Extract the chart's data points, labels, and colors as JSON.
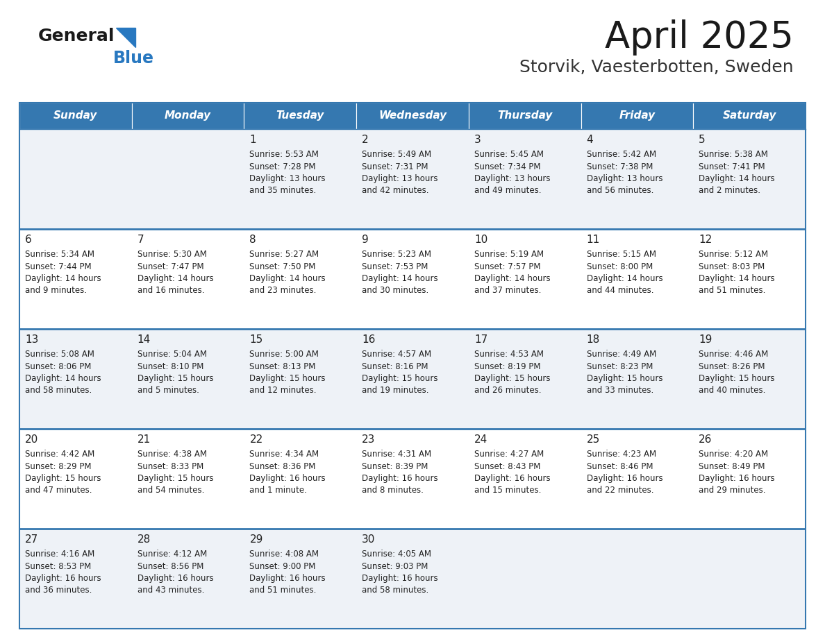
{
  "title": "April 2025",
  "subtitle": "Storvik, Vaesterbotten, Sweden",
  "days_of_week": [
    "Sunday",
    "Monday",
    "Tuesday",
    "Wednesday",
    "Thursday",
    "Friday",
    "Saturday"
  ],
  "header_bg_color": "#3578b0",
  "header_text_color": "#ffffff",
  "cell_bg_even": "#eef2f7",
  "cell_bg_odd": "#ffffff",
  "cell_border_color": "#3578b0",
  "day_number_color": "#222222",
  "text_color": "#222222",
  "title_color": "#1a1a1a",
  "subtitle_color": "#333333",
  "logo_general_color": "#1a1a1a",
  "logo_blue_color": "#2878c0",
  "weeks": [
    [
      {
        "day": "",
        "sunrise": "",
        "sunset": "",
        "daylight": ""
      },
      {
        "day": "",
        "sunrise": "",
        "sunset": "",
        "daylight": ""
      },
      {
        "day": "1",
        "sunrise": "5:53 AM",
        "sunset": "7:28 PM",
        "daylight": "13 hours and 35 minutes."
      },
      {
        "day": "2",
        "sunrise": "5:49 AM",
        "sunset": "7:31 PM",
        "daylight": "13 hours and 42 minutes."
      },
      {
        "day": "3",
        "sunrise": "5:45 AM",
        "sunset": "7:34 PM",
        "daylight": "13 hours and 49 minutes."
      },
      {
        "day": "4",
        "sunrise": "5:42 AM",
        "sunset": "7:38 PM",
        "daylight": "13 hours and 56 minutes."
      },
      {
        "day": "5",
        "sunrise": "5:38 AM",
        "sunset": "7:41 PM",
        "daylight": "14 hours and 2 minutes."
      }
    ],
    [
      {
        "day": "6",
        "sunrise": "5:34 AM",
        "sunset": "7:44 PM",
        "daylight": "14 hours and 9 minutes."
      },
      {
        "day": "7",
        "sunrise": "5:30 AM",
        "sunset": "7:47 PM",
        "daylight": "14 hours and 16 minutes."
      },
      {
        "day": "8",
        "sunrise": "5:27 AM",
        "sunset": "7:50 PM",
        "daylight": "14 hours and 23 minutes."
      },
      {
        "day": "9",
        "sunrise": "5:23 AM",
        "sunset": "7:53 PM",
        "daylight": "14 hours and 30 minutes."
      },
      {
        "day": "10",
        "sunrise": "5:19 AM",
        "sunset": "7:57 PM",
        "daylight": "14 hours and 37 minutes."
      },
      {
        "day": "11",
        "sunrise": "5:15 AM",
        "sunset": "8:00 PM",
        "daylight": "14 hours and 44 minutes."
      },
      {
        "day": "12",
        "sunrise": "5:12 AM",
        "sunset": "8:03 PM",
        "daylight": "14 hours and 51 minutes."
      }
    ],
    [
      {
        "day": "13",
        "sunrise": "5:08 AM",
        "sunset": "8:06 PM",
        "daylight": "14 hours and 58 minutes."
      },
      {
        "day": "14",
        "sunrise": "5:04 AM",
        "sunset": "8:10 PM",
        "daylight": "15 hours and 5 minutes."
      },
      {
        "day": "15",
        "sunrise": "5:00 AM",
        "sunset": "8:13 PM",
        "daylight": "15 hours and 12 minutes."
      },
      {
        "day": "16",
        "sunrise": "4:57 AM",
        "sunset": "8:16 PM",
        "daylight": "15 hours and 19 minutes."
      },
      {
        "day": "17",
        "sunrise": "4:53 AM",
        "sunset": "8:19 PM",
        "daylight": "15 hours and 26 minutes."
      },
      {
        "day": "18",
        "sunrise": "4:49 AM",
        "sunset": "8:23 PM",
        "daylight": "15 hours and 33 minutes."
      },
      {
        "day": "19",
        "sunrise": "4:46 AM",
        "sunset": "8:26 PM",
        "daylight": "15 hours and 40 minutes."
      }
    ],
    [
      {
        "day": "20",
        "sunrise": "4:42 AM",
        "sunset": "8:29 PM",
        "daylight": "15 hours and 47 minutes."
      },
      {
        "day": "21",
        "sunrise": "4:38 AM",
        "sunset": "8:33 PM",
        "daylight": "15 hours and 54 minutes."
      },
      {
        "day": "22",
        "sunrise": "4:34 AM",
        "sunset": "8:36 PM",
        "daylight": "16 hours and 1 minute."
      },
      {
        "day": "23",
        "sunrise": "4:31 AM",
        "sunset": "8:39 PM",
        "daylight": "16 hours and 8 minutes."
      },
      {
        "day": "24",
        "sunrise": "4:27 AM",
        "sunset": "8:43 PM",
        "daylight": "16 hours and 15 minutes."
      },
      {
        "day": "25",
        "sunrise": "4:23 AM",
        "sunset": "8:46 PM",
        "daylight": "16 hours and 22 minutes."
      },
      {
        "day": "26",
        "sunrise": "4:20 AM",
        "sunset": "8:49 PM",
        "daylight": "16 hours and 29 minutes."
      }
    ],
    [
      {
        "day": "27",
        "sunrise": "4:16 AM",
        "sunset": "8:53 PM",
        "daylight": "16 hours and 36 minutes."
      },
      {
        "day": "28",
        "sunrise": "4:12 AM",
        "sunset": "8:56 PM",
        "daylight": "16 hours and 43 minutes."
      },
      {
        "day": "29",
        "sunrise": "4:08 AM",
        "sunset": "9:00 PM",
        "daylight": "16 hours and 51 minutes."
      },
      {
        "day": "30",
        "sunrise": "4:05 AM",
        "sunset": "9:03 PM",
        "daylight": "16 hours and 58 minutes."
      },
      {
        "day": "",
        "sunrise": "",
        "sunset": "",
        "daylight": ""
      },
      {
        "day": "",
        "sunrise": "",
        "sunset": "",
        "daylight": ""
      },
      {
        "day": "",
        "sunrise": "",
        "sunset": "",
        "daylight": ""
      }
    ]
  ]
}
